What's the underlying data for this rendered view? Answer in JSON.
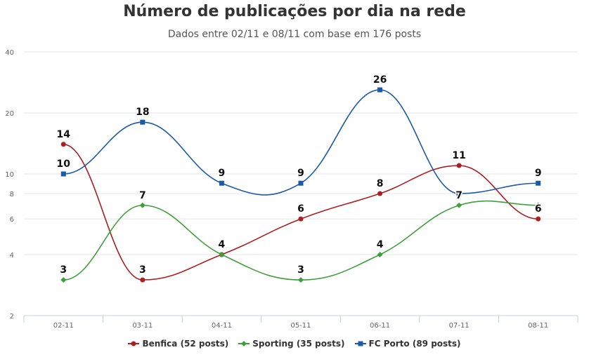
{
  "chart_data": {
    "type": "line",
    "title": "Número de publicações por dia na rede",
    "subtitle": "Dados entre 02/11 e 08/11 com base em 176 posts",
    "xlabel": "",
    "ylabel": "",
    "y_scale": "log",
    "ylim": [
      2,
      40
    ],
    "y_ticks": [
      2,
      4,
      6,
      8,
      10,
      20,
      40
    ],
    "grid": "horizontal",
    "legend_position": "bottom-center",
    "categories": [
      "02-11",
      "03-11",
      "04-11",
      "05-11",
      "06-11",
      "07-11",
      "08-11"
    ],
    "series": [
      {
        "name": "Benfica (52 posts)",
        "color": "#aa1f22",
        "marker": "circle",
        "values": [
          14,
          3,
          4,
          6,
          8,
          11,
          6
        ],
        "labels": [
          "14",
          "3",
          "4",
          "6",
          "8",
          "11",
          "6"
        ]
      },
      {
        "name": "Sporting (35 posts)",
        "color": "#3ea03c",
        "marker": "diamond",
        "values": [
          3,
          7,
          4,
          3,
          4,
          7,
          7
        ],
        "labels": [
          "3",
          "7",
          "",
          "3",
          "4",
          "7",
          ""
        ]
      },
      {
        "name": "FC Porto (89 posts)",
        "color": "#1d5aa5",
        "marker": "square",
        "values": [
          10,
          18,
          9,
          9,
          26,
          8,
          9
        ],
        "labels": [
          "10",
          "18",
          "9",
          "9",
          "26",
          "",
          "9"
        ]
      }
    ]
  }
}
